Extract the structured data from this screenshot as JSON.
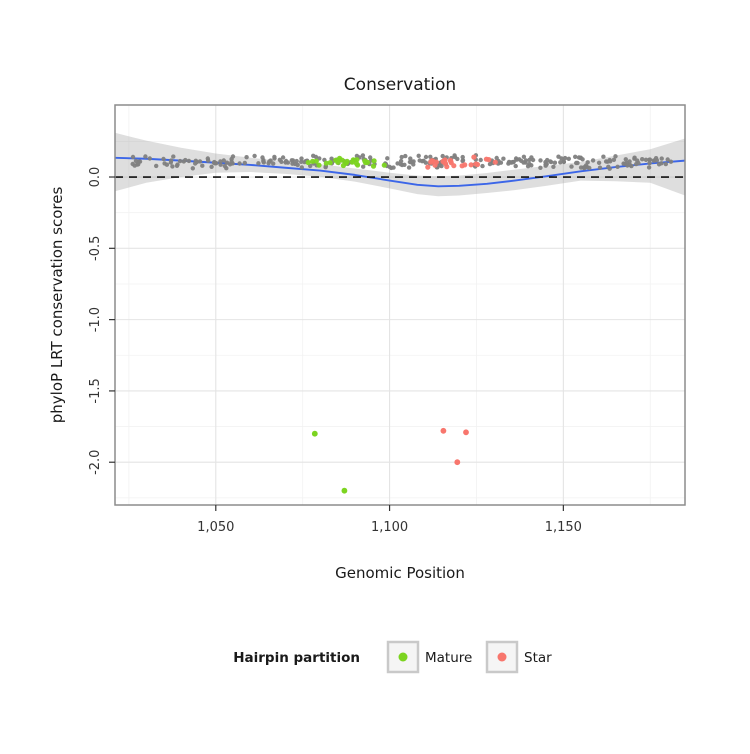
{
  "chart_data": {
    "type": "scatter",
    "title": "Conservation",
    "xlabel": "Genomic Position",
    "ylabel": "phyloP LRT conservation scores",
    "xlim": [
      1021,
      1185
    ],
    "ylim": [
      -2.3,
      0.505
    ],
    "x_ticks": [
      {
        "value": 1050,
        "label": "1,050"
      },
      {
        "value": 1100,
        "label": "1,100"
      },
      {
        "value": 1150,
        "label": "1,150"
      }
    ],
    "y_ticks": [
      {
        "value": 0.0,
        "label": "0.0"
      },
      {
        "value": -0.5,
        "label": "-0.5"
      },
      {
        "value": -1.0,
        "label": "-1.0"
      },
      {
        "value": -1.5,
        "label": "-1.5"
      },
      {
        "value": -2.0,
        "label": "-2.0"
      }
    ],
    "x_minor": [
      1025,
      1075,
      1125,
      1175
    ],
    "y_minor": [
      0.25,
      -0.25,
      -0.75,
      -1.25,
      -1.75,
      -2.25
    ],
    "grid": {
      "major_color": "#e4e4e4",
      "minor_color": "#f2f2f2"
    },
    "panel_border_color": "#8c8c8c",
    "zero_line": {
      "y": 0,
      "style": "dashed",
      "color": "#111111"
    },
    "smooth": {
      "color": "#3c66e8",
      "band_color": "#a0a0a0",
      "band_opacity": 0.35,
      "x": [
        1021,
        1030,
        1040,
        1050,
        1060,
        1070,
        1080,
        1090,
        1100,
        1108,
        1114,
        1120,
        1128,
        1136,
        1145,
        1155,
        1165,
        1175,
        1185
      ],
      "y": [
        0.135,
        0.128,
        0.115,
        0.1,
        0.085,
        0.065,
        0.045,
        0.015,
        -0.025,
        -0.055,
        -0.065,
        -0.062,
        -0.048,
        -0.025,
        0.005,
        0.04,
        0.07,
        0.095,
        0.115
      ],
      "upper": [
        0.31,
        0.255,
        0.205,
        0.165,
        0.135,
        0.11,
        0.09,
        0.06,
        0.03,
        0.01,
        0.005,
        0.01,
        0.028,
        0.052,
        0.078,
        0.105,
        0.15,
        0.195,
        0.27
      ],
      "lower": [
        -0.1,
        -0.04,
        0.0,
        0.03,
        0.035,
        0.022,
        0.002,
        -0.032,
        -0.08,
        -0.12,
        -0.135,
        -0.13,
        -0.112,
        -0.092,
        -0.062,
        -0.025,
        -0.03,
        -0.04,
        -0.13
      ]
    },
    "series": [
      {
        "name": "background",
        "color": "#7f7f7f",
        "point_radius": 2.2,
        "cluster": {
          "x_min": 1026,
          "x_max": 1182,
          "count": 280,
          "y_center": 0.105,
          "y_jitter": 0.05,
          "seed": 7
        },
        "outliers": []
      },
      {
        "name": "Mature",
        "color": "#7cd420",
        "point_radius": 2.6,
        "cluster": {
          "x_min": 1076,
          "x_max": 1099,
          "count": 26,
          "y_center": 0.105,
          "y_jitter": 0.04,
          "seed": 11
        },
        "outliers": [
          [
            1078.5,
            -1.8
          ],
          [
            1087,
            -2.2
          ]
        ]
      },
      {
        "name": "Star",
        "color": "#f8766d",
        "point_radius": 2.6,
        "cluster": {
          "x_min": 1110,
          "x_max": 1130.5,
          "count": 24,
          "y_center": 0.108,
          "y_jitter": 0.04,
          "seed": 13
        },
        "outliers": [
          [
            1115.5,
            -1.78
          ],
          [
            1122,
            -1.79
          ],
          [
            1119.5,
            -2.0
          ]
        ]
      }
    ],
    "legend": {
      "title": "Hairpin partition",
      "entries": [
        {
          "label": "Mature",
          "color": "#7cd420"
        },
        {
          "label": "Star",
          "color": "#f8766d"
        }
      ]
    }
  }
}
